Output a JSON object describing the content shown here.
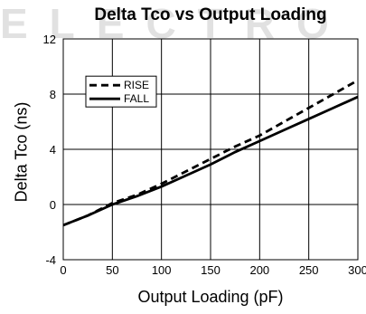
{
  "watermark": "ELECTRO",
  "chart_data": {
    "type": "line",
    "title": "Delta Tco vs Output Loading",
    "xlabel": "Output Loading (pF)",
    "ylabel": "Delta Tco (ns)",
    "xlim": [
      0,
      300
    ],
    "ylim": [
      -4,
      12
    ],
    "xticks": [
      0,
      50,
      100,
      150,
      200,
      250,
      300
    ],
    "yticks": [
      -4,
      0,
      4,
      8,
      12
    ],
    "grid": true,
    "legend_position": "upper-left",
    "series": [
      {
        "name": "RISE",
        "style": "dashed",
        "color": "#000000",
        "x": [
          0,
          25,
          50,
          75,
          100,
          125,
          150,
          175,
          200,
          225,
          250,
          275,
          300
        ],
        "y": [
          -1.5,
          -0.8,
          0.1,
          0.7,
          1.5,
          2.4,
          3.3,
          4.2,
          5.0,
          6.0,
          7.0,
          8.0,
          9.0
        ]
      },
      {
        "name": "FALL",
        "style": "solid",
        "color": "#000000",
        "x": [
          0,
          25,
          50,
          75,
          100,
          125,
          150,
          175,
          200,
          225,
          250,
          275,
          300
        ],
        "y": [
          -1.5,
          -0.8,
          0.0,
          0.6,
          1.3,
          2.1,
          2.9,
          3.8,
          4.6,
          5.4,
          6.2,
          7.0,
          7.8
        ]
      }
    ]
  }
}
